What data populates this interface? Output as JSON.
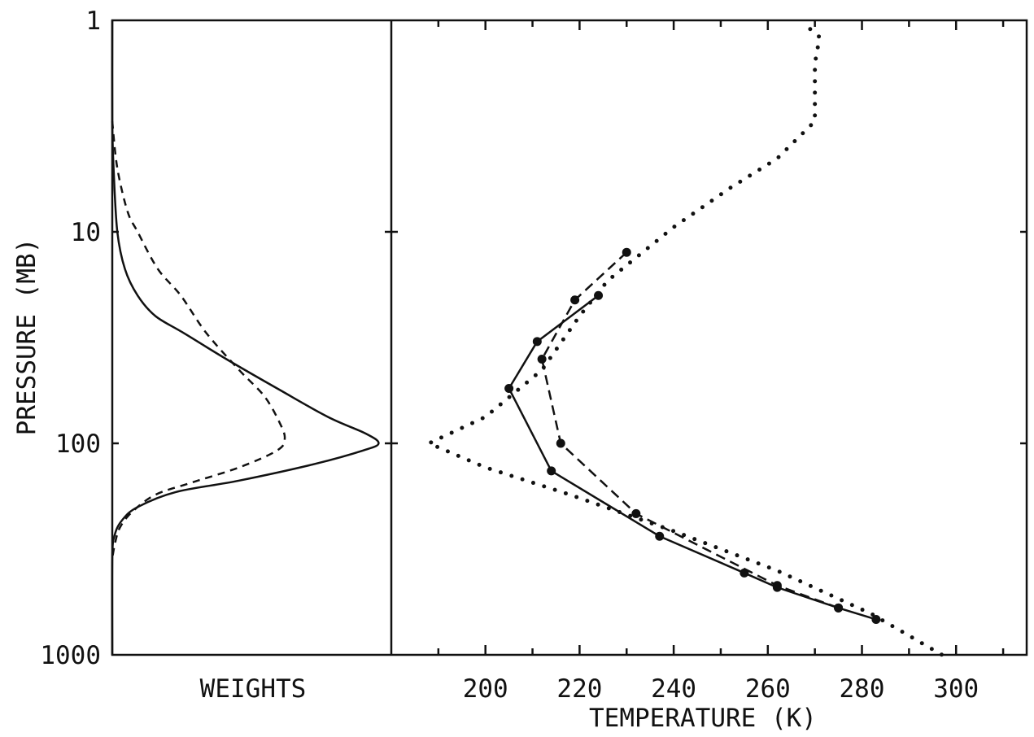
{
  "chart_data": [
    {
      "type": "line",
      "panel": "weights",
      "xlabel": "WEIGHTS",
      "ylabel": "PRESSURE (MB)",
      "yscale": "log",
      "ylim": [
        1000,
        1
      ],
      "yticks": [
        1,
        10,
        100,
        1000
      ],
      "ytick_labels": [
        "1",
        "10",
        "100",
        "1000"
      ],
      "xlim": [
        0,
        1.1
      ],
      "series": [
        {
          "style": "solid",
          "points": [
            [
              0.0,
              1
            ],
            [
              0.0,
              3
            ],
            [
              0.005,
              5
            ],
            [
              0.02,
              10
            ],
            [
              0.05,
              15
            ],
            [
              0.1,
              20
            ],
            [
              0.17,
              25
            ],
            [
              0.28,
              30
            ],
            [
              0.45,
              40
            ],
            [
              0.65,
              55
            ],
            [
              0.85,
              75
            ],
            [
              1.0,
              90
            ],
            [
              1.05,
              100
            ],
            [
              0.99,
              108
            ],
            [
              0.8,
              125
            ],
            [
              0.5,
              150
            ],
            [
              0.25,
              170
            ],
            [
              0.1,
              200
            ],
            [
              0.04,
              230
            ],
            [
              0.01,
              270
            ],
            [
              0.0,
              350
            ],
            [
              0.0,
              1000
            ]
          ]
        },
        {
          "style": "dashed",
          "points": [
            [
              0.0,
              3
            ],
            [
              0.02,
              5
            ],
            [
              0.06,
              8
            ],
            [
              0.1,
              10
            ],
            [
              0.18,
              15
            ],
            [
              0.27,
              20
            ],
            [
              0.37,
              30
            ],
            [
              0.5,
              45
            ],
            [
              0.6,
              60
            ],
            [
              0.66,
              80
            ],
            [
              0.68,
              95
            ],
            [
              0.65,
              108
            ],
            [
              0.5,
              130
            ],
            [
              0.3,
              155
            ],
            [
              0.17,
              175
            ],
            [
              0.08,
              210
            ],
            [
              0.03,
              250
            ],
            [
              0.01,
              300
            ],
            [
              0.0,
              350
            ]
          ]
        }
      ]
    },
    {
      "type": "line",
      "panel": "temperature",
      "xlabel": "TEMPERATURE (K)",
      "yscale": "log",
      "ylim": [
        1000,
        1
      ],
      "xlim": [
        180,
        315
      ],
      "xticks": [
        200,
        220,
        240,
        260,
        280,
        300
      ],
      "xtick_labels": [
        "200",
        "220",
        "240",
        "260",
        "280",
        "300"
      ],
      "series": [
        {
          "style": "solid-markers",
          "points": [
            [
              224,
              20
            ],
            [
              211,
              33
            ],
            [
              205,
              55
            ],
            [
              214,
              135
            ],
            [
              237,
              275
            ],
            [
              255,
              410
            ],
            [
              262,
              480
            ],
            [
              275,
              600
            ],
            [
              283,
              680
            ]
          ]
        },
        {
          "style": "dashed-markers",
          "points": [
            [
              230,
              12.5
            ],
            [
              219,
              21
            ],
            [
              212,
              40
            ],
            [
              216,
              100
            ],
            [
              232,
              215
            ],
            [
              262,
              470
            ],
            [
              275,
              600
            ]
          ]
        },
        {
          "style": "dotted",
          "points": [
            [
              269,
              1.1
            ],
            [
              271,
              1.2
            ],
            [
              270,
              1.6
            ],
            [
              270,
              3.0
            ],
            [
              262,
              4.5
            ],
            [
              252,
              6.2
            ],
            [
              240,
              9.5
            ],
            [
              226,
              17
            ],
            [
              220,
              25
            ],
            [
              212,
              45
            ],
            [
              200,
              75
            ],
            [
              188,
              100
            ],
            [
              200,
              130
            ],
            [
              218,
              175
            ],
            [
              240,
              260
            ],
            [
              262,
              400
            ],
            [
              282,
              640
            ],
            [
              297,
              1000
            ]
          ]
        }
      ]
    }
  ]
}
